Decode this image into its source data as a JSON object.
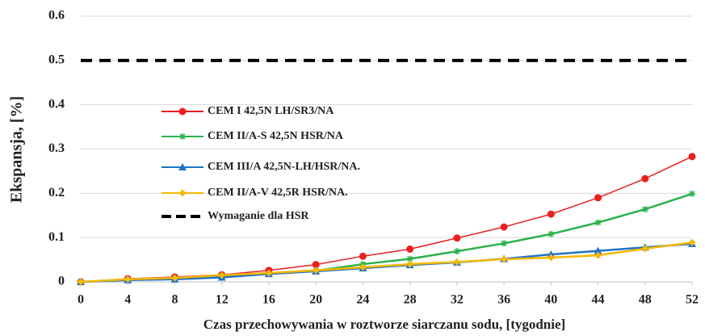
{
  "chart_data": {
    "type": "line",
    "x_label": "Czas przechowywania w roztworze siarczanu sodu, [tygodnie]",
    "y_label": "Ekspansja, [%]",
    "x": [
      0,
      4,
      8,
      12,
      16,
      20,
      24,
      28,
      32,
      36,
      40,
      44,
      48,
      52
    ],
    "xlim": [
      0,
      52
    ],
    "xticks": [
      0,
      4,
      8,
      12,
      16,
      20,
      24,
      28,
      32,
      36,
      40,
      44,
      48,
      52
    ],
    "ylim": [
      0,
      0.6
    ],
    "yticks": [
      0,
      0.1,
      0.2,
      0.3,
      0.4,
      0.5,
      0.6
    ],
    "grid": true,
    "legend": "center-left",
    "series": [
      {
        "name": "CEM I 42,5N LH/SR3/NA",
        "color": "#e8201f",
        "marker": "circle",
        "values": [
          0,
          0.007,
          0.011,
          0.016,
          0.026,
          0.039,
          0.058,
          0.074,
          0.099,
          0.124,
          0.153,
          0.19,
          0.233,
          0.283
        ]
      },
      {
        "name": "CEM II/A-S 42,5N HSR/NA",
        "color": "#2bb24c",
        "marker": "star",
        "values": [
          0,
          0.005,
          0.008,
          0.012,
          0.018,
          0.025,
          0.04,
          0.052,
          0.069,
          0.087,
          0.108,
          0.134,
          0.164,
          0.199
        ]
      },
      {
        "name": "CEM III/A 42,5N-LH/HSR/NA.",
        "color": "#1f72c4",
        "marker": "triangle",
        "values": [
          0,
          0.004,
          0.006,
          0.01,
          0.018,
          0.024,
          0.031,
          0.038,
          0.044,
          0.052,
          0.062,
          0.07,
          0.078,
          0.086
        ]
      },
      {
        "name": "CEM II/A-V 42,5R HSR/NA.",
        "color": "#f5b800",
        "marker": "diamond",
        "values": [
          0,
          0.006,
          0.009,
          0.015,
          0.02,
          0.026,
          0.033,
          0.04,
          0.045,
          0.051,
          0.055,
          0.06,
          0.075,
          0.089
        ]
      },
      {
        "name": "Wymaganie dla HSR",
        "color": "#000000",
        "marker": "none",
        "dashed": true,
        "values": [
          0.5,
          0.5,
          0.5,
          0.5,
          0.5,
          0.5,
          0.5,
          0.5,
          0.5,
          0.5,
          0.5,
          0.5,
          0.5,
          0.5
        ]
      }
    ]
  }
}
